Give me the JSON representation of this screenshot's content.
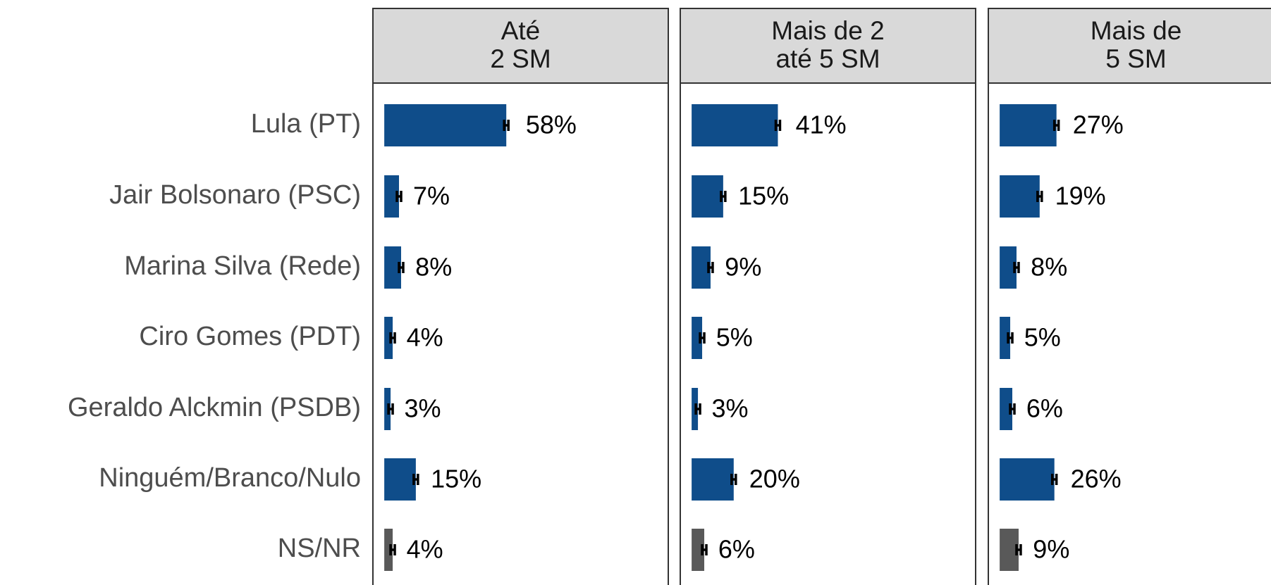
{
  "chart_data": {
    "type": "bar",
    "orientation": "horizontal",
    "categories": [
      "Lula (PT)",
      "Jair Bolsonaro (PSC)",
      "Marina Silva (Rede)",
      "Ciro Gomes (PDT)",
      "Geraldo Alckmin (PSDB)",
      "Ninguém/Branco/Nulo",
      "NS/NR"
    ],
    "colors": [
      "#0f4d8a",
      "#0f4d8a",
      "#0f4d8a",
      "#0f4d8a",
      "#0f4d8a",
      "#0f4d8a",
      "#595959"
    ],
    "xlim": [
      -5.4,
      135
    ],
    "panels": [
      {
        "title": [
          "Até",
          "2 SM"
        ],
        "values": [
          58,
          7,
          8,
          4,
          3,
          15,
          4
        ],
        "value_labels": [
          "58%",
          "7%",
          "8%",
          "4%",
          "3%",
          "15%",
          "4%"
        ],
        "errors": [
          1,
          1,
          1,
          1,
          1,
          1,
          1
        ]
      },
      {
        "title": [
          "Mais de 2",
          "até 5 SM"
        ],
        "values": [
          41,
          15,
          9,
          5,
          3,
          20,
          6
        ],
        "value_labels": [
          "41%",
          "15%",
          "9%",
          "5%",
          "3%",
          "20%",
          "6%"
        ],
        "errors": [
          1,
          1,
          1,
          1,
          1,
          1,
          1
        ]
      },
      {
        "title": [
          "Mais de",
          "5 SM"
        ],
        "values": [
          27,
          19,
          8,
          5,
          6,
          26,
          9
        ],
        "value_labels": [
          "27%",
          "19%",
          "8%",
          "5%",
          "6%",
          "26%",
          "9%"
        ],
        "errors": [
          1,
          1,
          1,
          1,
          1,
          1,
          1
        ]
      }
    ]
  }
}
